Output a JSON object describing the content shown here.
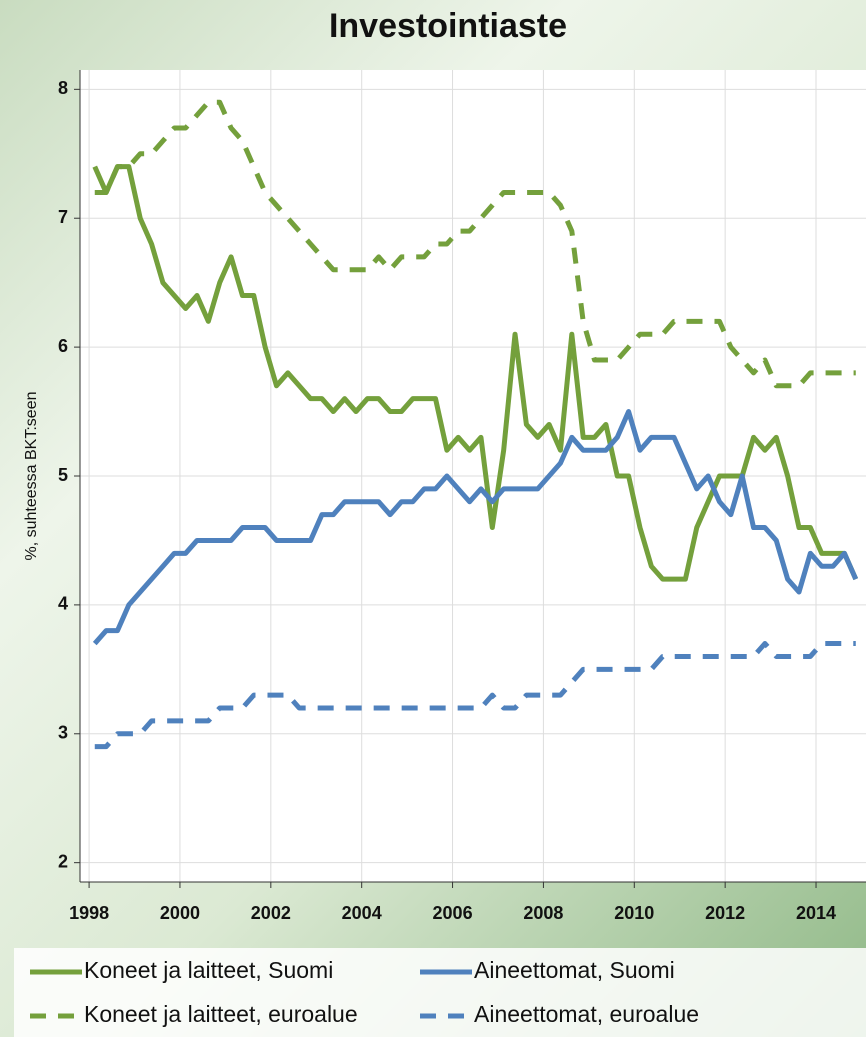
{
  "chart_data": {
    "type": "line",
    "title": "Investointiaste",
    "ylabel": "%, suhteessa BKT:seen",
    "x": [
      1998.125,
      1998.375,
      1998.625,
      1998.875,
      1999.125,
      1999.375,
      1999.625,
      1999.875,
      2000.125,
      2000.375,
      2000.625,
      2000.875,
      2001.125,
      2001.375,
      2001.625,
      2001.875,
      2002.125,
      2002.375,
      2002.625,
      2002.875,
      2003.125,
      2003.375,
      2003.625,
      2003.875,
      2004.125,
      2004.375,
      2004.625,
      2004.875,
      2005.125,
      2005.375,
      2005.625,
      2005.875,
      2006.125,
      2006.375,
      2006.625,
      2006.875,
      2007.125,
      2007.375,
      2007.625,
      2007.875,
      2008.125,
      2008.375,
      2008.625,
      2008.875,
      2009.125,
      2009.375,
      2009.625,
      2009.875,
      2010.125,
      2010.375,
      2010.625,
      2010.875,
      2011.125,
      2011.375,
      2011.625,
      2011.875,
      2012.125,
      2012.375,
      2012.625,
      2012.875,
      2013.125,
      2013.375,
      2013.625,
      2013.875,
      2014.125,
      2014.375,
      2014.625,
      2014.875
    ],
    "series": [
      {
        "name": "Koneet ja laitteet, Suomi",
        "color": "#74a03c",
        "dashed": false,
        "values": [
          7.4,
          7.2,
          7.4,
          7.4,
          7.0,
          6.8,
          6.5,
          6.4,
          6.3,
          6.4,
          6.2,
          6.5,
          6.7,
          6.4,
          6.4,
          6.0,
          5.7,
          5.8,
          5.7,
          5.6,
          5.6,
          5.5,
          5.6,
          5.5,
          5.6,
          5.6,
          5.5,
          5.5,
          5.6,
          5.6,
          5.6,
          5.2,
          5.3,
          5.2,
          5.3,
          4.6,
          5.2,
          6.1,
          5.4,
          5.3,
          5.4,
          5.2,
          6.1,
          5.3,
          5.3,
          5.4,
          5.0,
          5.0,
          4.6,
          4.3,
          4.2,
          4.2,
          4.2,
          4.6,
          4.8,
          5.0,
          5.0,
          5.0,
          5.3,
          5.2,
          5.3,
          5.0,
          4.6,
          4.6,
          4.4,
          4.4,
          4.4,
          4.2
        ]
      },
      {
        "name": "Aineettomat, Suomi",
        "color": "#4f81bd",
        "dashed": false,
        "values": [
          3.7,
          3.8,
          3.8,
          4.0,
          4.1,
          4.2,
          4.3,
          4.4,
          4.4,
          4.5,
          4.5,
          4.5,
          4.5,
          4.6,
          4.6,
          4.6,
          4.5,
          4.5,
          4.5,
          4.5,
          4.7,
          4.7,
          4.8,
          4.8,
          4.8,
          4.8,
          4.7,
          4.8,
          4.8,
          4.9,
          4.9,
          5.0,
          4.9,
          4.8,
          4.9,
          4.8,
          4.9,
          4.9,
          4.9,
          4.9,
          5.0,
          5.1,
          5.3,
          5.2,
          5.2,
          5.2,
          5.3,
          5.5,
          5.2,
          5.3,
          5.3,
          5.3,
          5.1,
          4.9,
          5.0,
          4.8,
          4.7,
          5.0,
          4.6,
          4.6,
          4.5,
          4.2,
          4.1,
          4.4,
          4.3,
          4.3,
          4.4,
          4.2
        ]
      },
      {
        "name": "Koneet ja laitteet, euroalue",
        "color": "#74a03c",
        "dashed": true,
        "values": [
          7.2,
          7.2,
          7.4,
          7.4,
          7.5,
          7.5,
          7.6,
          7.7,
          7.7,
          7.8,
          7.9,
          7.9,
          7.7,
          7.6,
          7.4,
          7.2,
          7.1,
          7.0,
          6.9,
          6.8,
          6.7,
          6.6,
          6.6,
          6.6,
          6.6,
          6.7,
          6.6,
          6.7,
          6.7,
          6.7,
          6.8,
          6.8,
          6.9,
          6.9,
          7.0,
          7.1,
          7.2,
          7.2,
          7.2,
          7.2,
          7.2,
          7.1,
          6.9,
          6.2,
          5.9,
          5.9,
          5.9,
          6.0,
          6.1,
          6.1,
          6.1,
          6.2,
          6.2,
          6.2,
          6.2,
          6.2,
          6.0,
          5.9,
          5.8,
          5.9,
          5.7,
          5.7,
          5.7,
          5.8,
          5.8,
          5.8,
          5.8,
          5.8
        ]
      },
      {
        "name": "Aineettomat, euroalue",
        "color": "#4f81bd",
        "dashed": true,
        "values": [
          2.9,
          2.9,
          3.0,
          3.0,
          3.0,
          3.1,
          3.1,
          3.1,
          3.1,
          3.1,
          3.1,
          3.2,
          3.2,
          3.2,
          3.3,
          3.3,
          3.3,
          3.3,
          3.2,
          3.2,
          3.2,
          3.2,
          3.2,
          3.2,
          3.2,
          3.2,
          3.2,
          3.2,
          3.2,
          3.2,
          3.2,
          3.2,
          3.2,
          3.2,
          3.2,
          3.3,
          3.2,
          3.2,
          3.3,
          3.3,
          3.3,
          3.3,
          3.4,
          3.5,
          3.5,
          3.5,
          3.5,
          3.5,
          3.5,
          3.5,
          3.6,
          3.6,
          3.6,
          3.6,
          3.6,
          3.6,
          3.6,
          3.6,
          3.6,
          3.7,
          3.6,
          3.6,
          3.6,
          3.6,
          3.7,
          3.7,
          3.7,
          3.7
        ]
      }
    ],
    "xlim": [
      1997.8,
      2015.1
    ],
    "xticks": [
      1998,
      2000,
      2002,
      2004,
      2006,
      2008,
      2010,
      2012,
      2014
    ],
    "ylim": [
      1.85,
      8.15
    ],
    "yticks": [
      2,
      3,
      4,
      5,
      6,
      7,
      8
    ],
    "grid": true,
    "legend": "bottom"
  }
}
